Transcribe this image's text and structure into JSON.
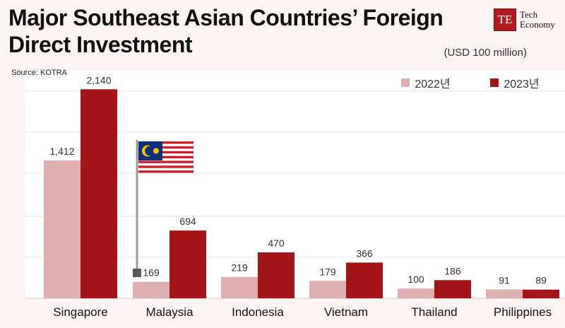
{
  "header": {
    "title_line1": "Major Southeast Asian Countries’ Foreign",
    "title_line2": "Direct Investment",
    "source": "Source: KOTRA",
    "unit": "(USD 100 million)"
  },
  "logo": {
    "mark": "TE",
    "line1": "Tech",
    "line2": "Economy"
  },
  "colors": {
    "series_2022": "#dfaeb1",
    "series_2023": "#a51416",
    "logo": "#b01c22"
  },
  "chart_data": {
    "type": "bar",
    "title": "Major Southeast Asian Countries’ Foreign Direct Investment",
    "unit": "(USD 100 million)",
    "categories": [
      "Singapore",
      "Malaysia",
      "Indonesia",
      "Vietnam",
      "Thailand",
      "Philippines"
    ],
    "series": [
      {
        "name": "2022년",
        "values": [
          1412,
          169,
          219,
          179,
          100,
          91
        ]
      },
      {
        "name": "2023년",
        "values": [
          2140,
          694,
          470,
          366,
          186,
          89
        ]
      }
    ],
    "value_labels": [
      [
        "1,412",
        "169",
        "219",
        "179",
        "100",
        "91"
      ],
      [
        "2,140",
        "694",
        "470",
        "366",
        "186",
        "89"
      ]
    ],
    "ylim": [
      0,
      2200
    ],
    "grid": true,
    "legend_position": "top-right",
    "decoration": "Malaysian flag icon above the Malaysia bars"
  }
}
